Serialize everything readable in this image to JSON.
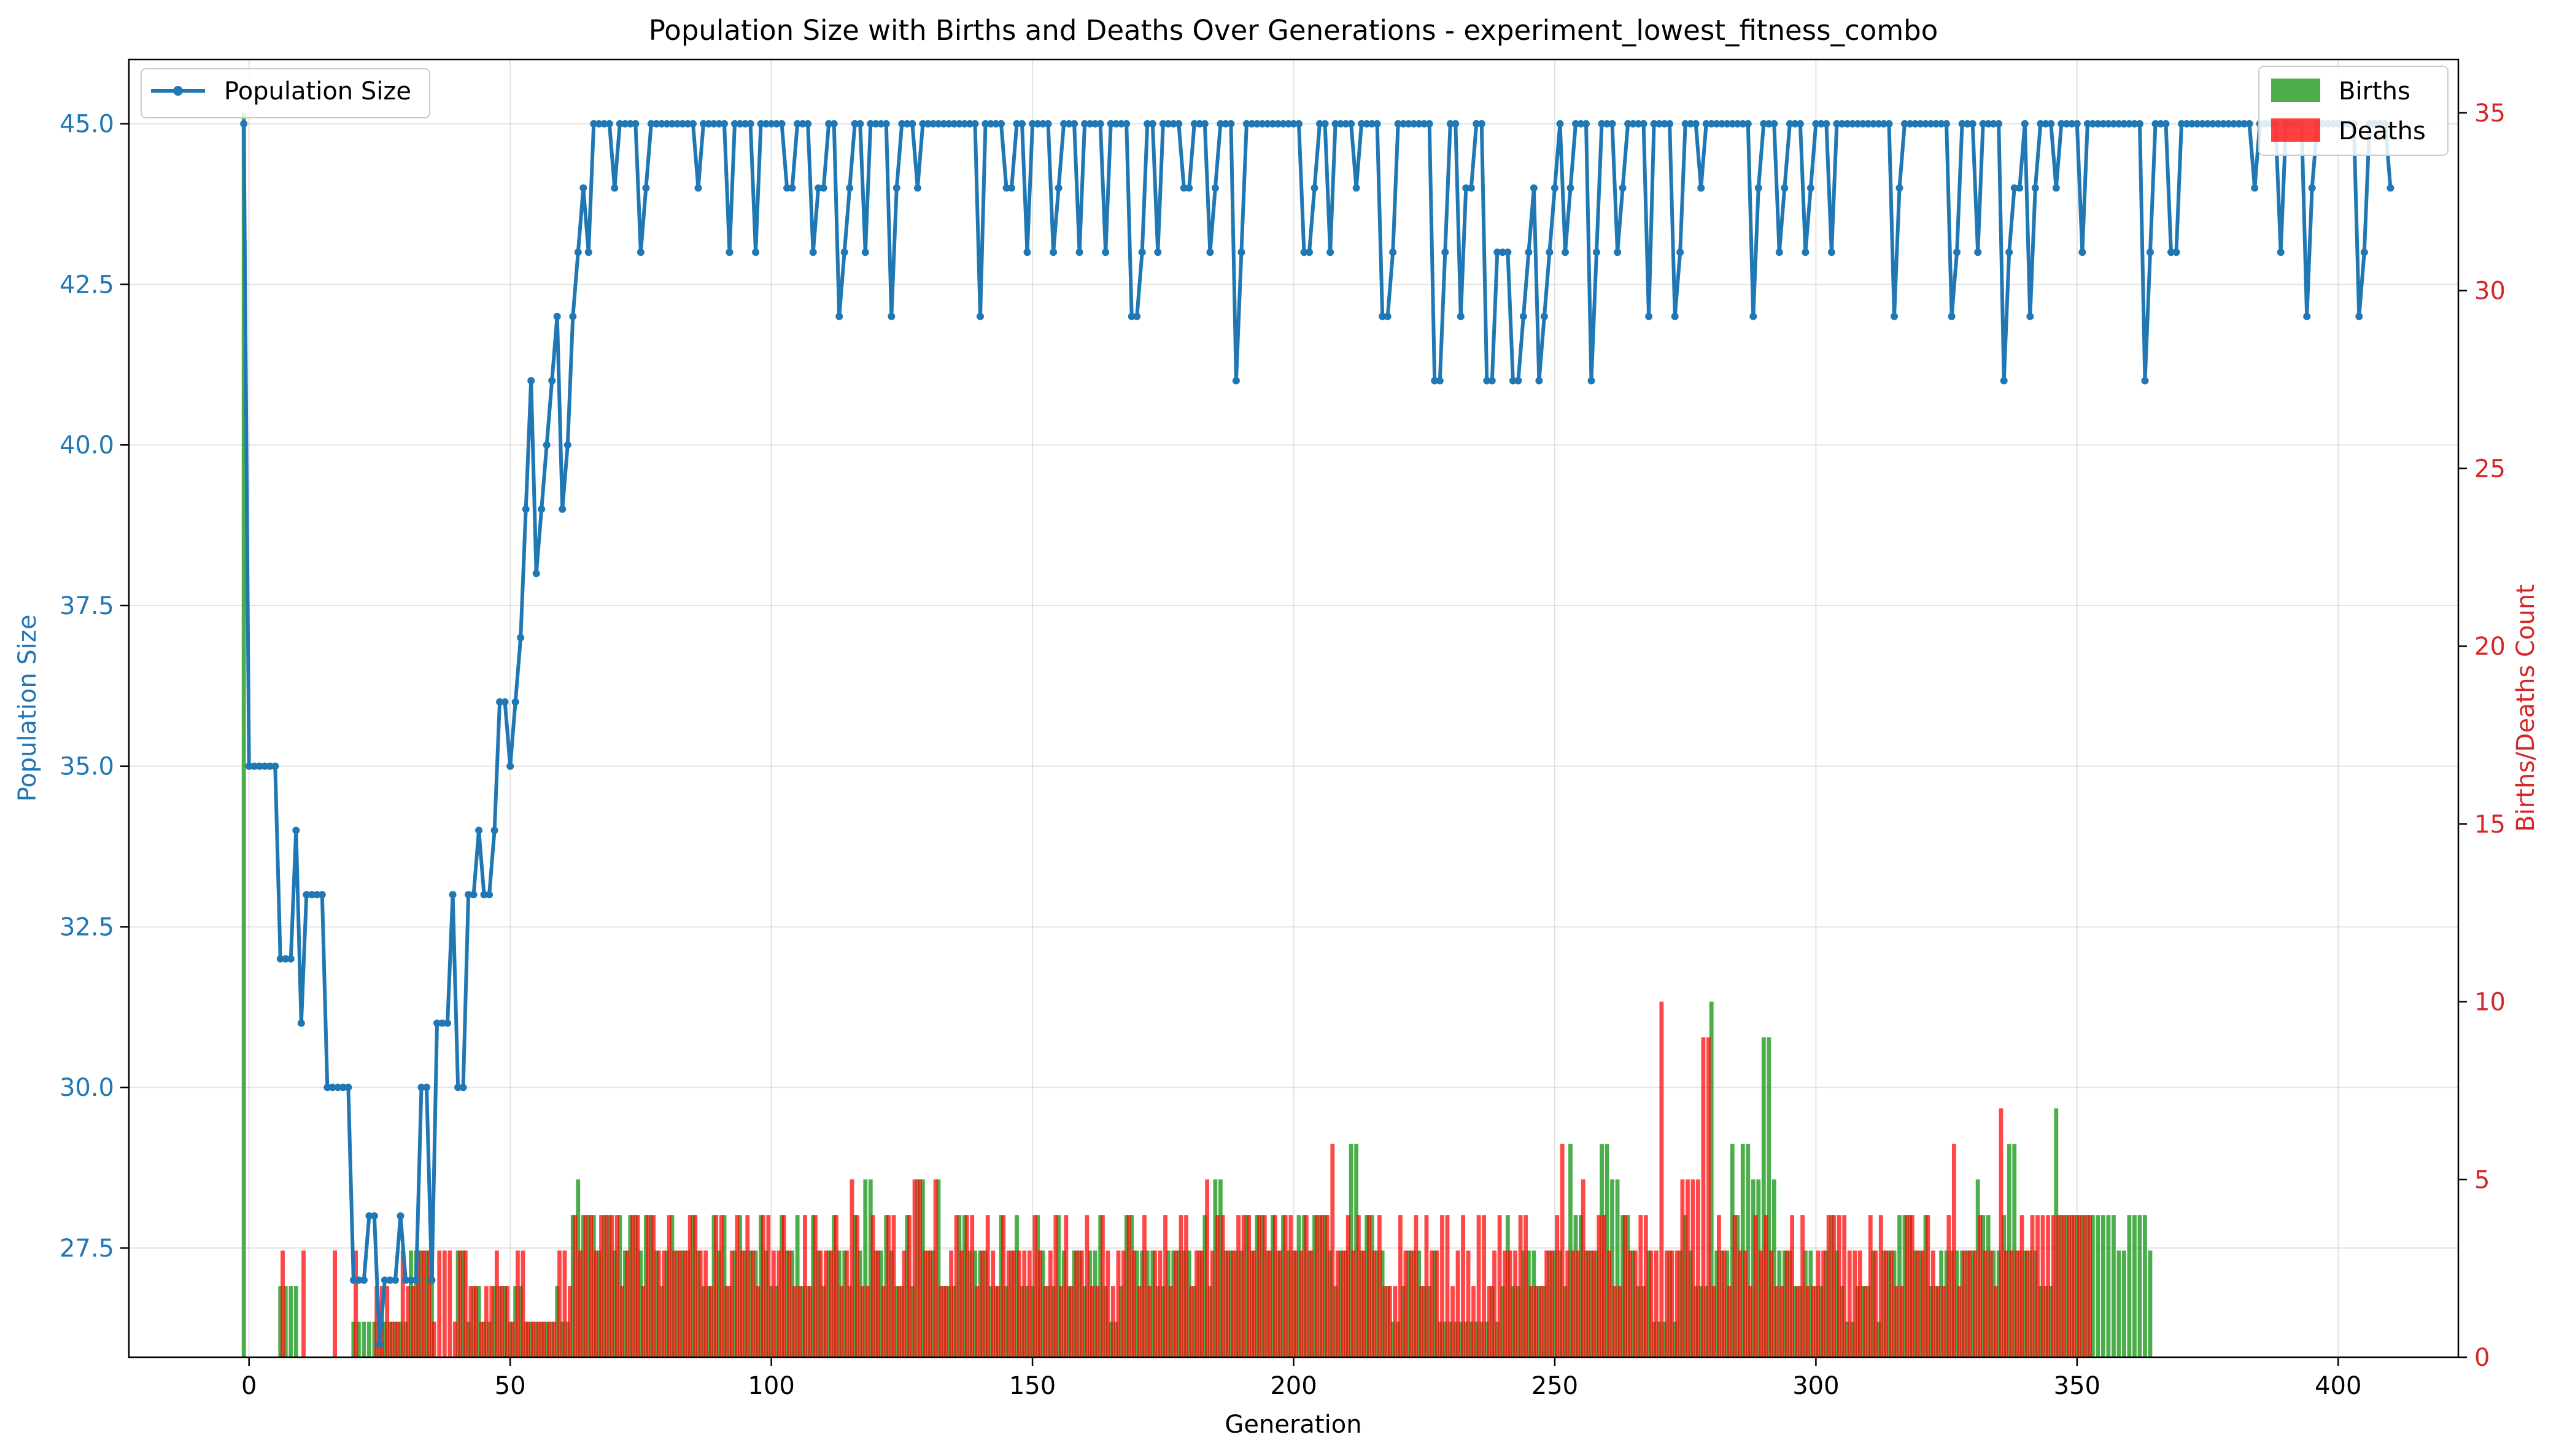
{
  "chart_data": {
    "type": "line",
    "title": "Population Size with Births and Deaths Over Generations - experiment_lowest_fitness_combo",
    "xlabel": "Generation",
    "ylabel_left": "Population Size",
    "ylabel_right": "Births/Deaths Count",
    "xlim": [
      -23,
      423
    ],
    "ylim_left": [
      25.8,
      46.0
    ],
    "ylim_right": [
      0,
      36.5
    ],
    "xticks": [
      0,
      50,
      100,
      150,
      200,
      250,
      300,
      350,
      400
    ],
    "xtick_labels": [
      "0",
      "50",
      "100",
      "150",
      "200",
      "250",
      "300",
      "350",
      "400"
    ],
    "yticks_left": [
      27.5,
      30.0,
      32.5,
      35.0,
      37.5,
      40.0,
      42.5,
      45.0
    ],
    "ytick_labels_left": [
      "27.5",
      "30.0",
      "32.5",
      "35.0",
      "37.5",
      "40.0",
      "42.5",
      "45.0"
    ],
    "yticks_right": [
      0,
      5,
      10,
      15,
      20,
      25,
      30,
      35
    ],
    "ytick_labels_right": [
      "0",
      "5",
      "10",
      "15",
      "20",
      "25",
      "30",
      "35"
    ],
    "grid": true,
    "legend_left": {
      "placement": "top-left",
      "entries": [
        "Population Size"
      ]
    },
    "legend_right": {
      "placement": "top-right",
      "entries": [
        "Births",
        "Deaths"
      ]
    },
    "colors": {
      "population": "#1f77b4",
      "births": "#2ca02c",
      "deaths": "#ff0000",
      "right_axis": "#d62728"
    },
    "population": {
      "name": "Population Size",
      "x_start": -1,
      "values": [
        45,
        35,
        35,
        35,
        35,
        35,
        35,
        32,
        32,
        32,
        34,
        31,
        33,
        33,
        33,
        33,
        30,
        30,
        30,
        30,
        30,
        27,
        27,
        27,
        28,
        28,
        26,
        27,
        27,
        27,
        28,
        27,
        27,
        27,
        30,
        30,
        27,
        31,
        31,
        31,
        33,
        30,
        30,
        33,
        33,
        34,
        33,
        33,
        34,
        36,
        36,
        35,
        36,
        37,
        39,
        41,
        38,
        39,
        40,
        41,
        42,
        39,
        40,
        42,
        43,
        44,
        43,
        45,
        45,
        45,
        45,
        44,
        45,
        45,
        45,
        45,
        43,
        44,
        45,
        45,
        45,
        45,
        45,
        45,
        45,
        45,
        45,
        44,
        45,
        45,
        45,
        45,
        45,
        43,
        45,
        45,
        45,
        45,
        43,
        45,
        45,
        45,
        45,
        45,
        44,
        44,
        45,
        45,
        45,
        43,
        44,
        44,
        45,
        45,
        42,
        43,
        44,
        45,
        45,
        43,
        45,
        45,
        45,
        45,
        42,
        44,
        45,
        45,
        45,
        44,
        45,
        45,
        45,
        45,
        45,
        45,
        45,
        45,
        45,
        45,
        45,
        42,
        45,
        45,
        45,
        45,
        44,
        44,
        45,
        45,
        43,
        45,
        45,
        45,
        45,
        43,
        44,
        45,
        45,
        45,
        43,
        45,
        45,
        45,
        45,
        43,
        45,
        45,
        45,
        45,
        42,
        42,
        43,
        45,
        45,
        43,
        45,
        45,
        45,
        45,
        44,
        44,
        45,
        45,
        45,
        43,
        44,
        45,
        45,
        45,
        41,
        43,
        45,
        45,
        45,
        45,
        45,
        45,
        45,
        45,
        45,
        45,
        45,
        43,
        43,
        44,
        45,
        45,
        43,
        45,
        45,
        45,
        45,
        44,
        45,
        45,
        45,
        45,
        42,
        42,
        43,
        45,
        45,
        45,
        45,
        45,
        45,
        45,
        41,
        41,
        43,
        45,
        45,
        42,
        44,
        44,
        45,
        45,
        41,
        41,
        43,
        43,
        43,
        41,
        41,
        42,
        43,
        44,
        41,
        42,
        43,
        44,
        45,
        43,
        44,
        45,
        45,
        45,
        41,
        43,
        45,
        45,
        45,
        43,
        44,
        45,
        45,
        45,
        45,
        42,
        45,
        45,
        45,
        45,
        42,
        43,
        45,
        45,
        45,
        44,
        45,
        45,
        45,
        45,
        45,
        45,
        45,
        45,
        45,
        42,
        44,
        45,
        45,
        45,
        43,
        44,
        45,
        45,
        45,
        43,
        44,
        45,
        45,
        45,
        43,
        45,
        45,
        45,
        45,
        45,
        45,
        45,
        45,
        45,
        45,
        45,
        42,
        44,
        45,
        45,
        45,
        45,
        45,
        45,
        45,
        45,
        45,
        42,
        43,
        45,
        45,
        45,
        43,
        45,
        45,
        45,
        45,
        41,
        43,
        44,
        44,
        45,
        42,
        44,
        45,
        45,
        45,
        44,
        45,
        45,
        45,
        45,
        43,
        45,
        45,
        45,
        45,
        45,
        45,
        45,
        45,
        45,
        45,
        45,
        41,
        43,
        45,
        45,
        45,
        43,
        43,
        45,
        45,
        45,
        45,
        45,
        45,
        45,
        45,
        45,
        45,
        45,
        45,
        45,
        45,
        44,
        45,
        45,
        45,
        45,
        43,
        45,
        45,
        45,
        45,
        42,
        44,
        45,
        45,
        45,
        45,
        45,
        45,
        45,
        45,
        42,
        43,
        45,
        45,
        45,
        45,
        44
      ]
    },
    "births": {
      "name": "Births",
      "x_start": -1,
      "values": [
        35,
        0,
        0,
        0,
        0,
        0,
        0,
        2,
        2,
        2,
        2,
        0,
        0,
        0,
        0,
        0,
        0,
        0,
        0,
        0,
        0,
        1,
        1,
        1,
        1,
        1,
        1,
        1,
        1,
        1,
        1,
        1,
        3,
        3,
        3,
        3,
        4,
        0,
        0,
        0,
        0,
        3,
        3,
        1,
        2,
        2,
        1,
        1,
        2,
        2,
        2,
        1,
        2,
        2,
        1,
        1,
        1,
        1,
        1,
        1,
        2,
        1,
        1,
        4,
        5,
        4,
        4,
        4,
        3,
        4,
        4,
        3,
        4,
        3,
        4,
        4,
        3,
        4,
        4,
        3,
        2,
        3,
        4,
        3,
        3,
        3,
        4,
        3,
        2,
        2,
        4,
        3,
        4,
        2,
        3,
        4,
        3,
        3,
        3,
        4,
        3,
        2,
        2,
        4,
        3,
        3,
        4,
        2,
        2,
        4,
        3,
        2,
        3,
        4,
        3,
        3,
        2,
        4,
        3,
        5,
        5,
        3,
        3,
        4,
        3,
        2,
        2,
        4,
        2,
        5,
        5,
        3,
        3,
        5,
        2,
        2,
        2,
        4,
        4,
        3,
        3,
        3,
        3,
        2,
        2,
        4,
        2,
        3,
        4,
        2,
        2,
        2,
        4,
        3,
        2,
        2,
        4,
        3,
        2,
        3,
        3,
        2,
        3,
        3,
        4,
        2,
        1,
        1,
        2,
        4,
        4,
        3,
        3,
        3,
        3,
        2,
        2,
        3,
        3,
        3,
        3,
        3,
        2,
        3,
        4,
        2,
        5,
        5,
        3,
        3,
        3,
        3,
        4,
        3,
        4,
        4,
        3,
        4,
        3,
        4,
        3,
        3,
        4,
        4,
        3,
        4,
        4,
        4,
        3,
        2,
        3,
        3,
        6,
        6,
        3,
        4,
        4,
        3,
        3,
        2,
        1,
        1,
        2,
        3,
        3,
        3,
        2,
        2,
        3,
        1,
        1,
        1,
        1,
        1,
        1,
        1,
        1,
        1,
        1,
        2,
        1,
        2,
        4,
        2,
        2,
        3,
        3,
        3,
        2,
        2,
        3,
        3,
        3,
        2,
        6,
        4,
        4,
        3,
        3,
        3,
        6,
        6,
        5,
        5,
        4,
        4,
        3,
        2,
        2,
        3,
        1,
        1,
        1,
        3,
        1,
        3,
        4,
        3,
        2,
        2,
        2,
        10,
        3,
        3,
        3,
        6,
        4,
        6,
        6,
        5,
        5,
        9,
        9,
        5,
        3,
        3,
        3,
        2,
        2,
        3,
        3,
        2,
        2,
        3,
        4,
        3,
        2,
        1,
        1,
        2,
        2,
        2,
        3,
        1,
        3,
        3,
        3,
        4,
        4,
        4,
        3,
        3,
        4,
        2,
        2,
        3,
        3,
        3,
        3,
        3,
        3,
        3,
        5,
        4,
        4,
        3,
        3,
        4,
        6,
        6,
        3,
        3,
        3,
        3,
        2,
        2,
        2,
        7,
        4,
        4,
        4,
        4,
        4,
        4,
        4,
        4,
        4,
        4,
        4,
        3,
        3,
        4,
        4,
        4,
        4,
        3
      ]
    },
    "deaths": {
      "name": "Deaths",
      "x_start": -1,
      "values": [
        0,
        0,
        0,
        0,
        0,
        0,
        0,
        3,
        0,
        0,
        0,
        3,
        0,
        0,
        0,
        0,
        0,
        3,
        0,
        0,
        0,
        3,
        0,
        0,
        0,
        2,
        2,
        2,
        1,
        1,
        3,
        2,
        2,
        3,
        3,
        3,
        1,
        3,
        3,
        3,
        1,
        3,
        3,
        2,
        2,
        1,
        2,
        2,
        3,
        2,
        2,
        1,
        3,
        3,
        1,
        1,
        1,
        1,
        1,
        1,
        3,
        3,
        2,
        4,
        3,
        4,
        4,
        3,
        4,
        4,
        4,
        4,
        2,
        3,
        4,
        4,
        2,
        4,
        4,
        3,
        3,
        4,
        3,
        3,
        3,
        4,
        4,
        3,
        3,
        2,
        4,
        4,
        2,
        3,
        4,
        3,
        4,
        3,
        2,
        4,
        4,
        3,
        3,
        4,
        3,
        2,
        2,
        4,
        2,
        4,
        3,
        3,
        3,
        4,
        2,
        3,
        5,
        4,
        2,
        2,
        4,
        3,
        2,
        4,
        4,
        2,
        3,
        4,
        5,
        5,
        3,
        3,
        5,
        2,
        2,
        3,
        4,
        3,
        4,
        4,
        2,
        3,
        4,
        3,
        2,
        4,
        3,
        3,
        3,
        3,
        3,
        4,
        3,
        2,
        3,
        4,
        2,
        4,
        2,
        3,
        3,
        4,
        2,
        2,
        4,
        3,
        2,
        3,
        3,
        4,
        3,
        2,
        4,
        2,
        3,
        3,
        4,
        2,
        3,
        4,
        4,
        2,
        3,
        3,
        5,
        3,
        4,
        4,
        3,
        3,
        4,
        4,
        4,
        3,
        4,
        4,
        3,
        4,
        3,
        4,
        4,
        3,
        3,
        4,
        3,
        4,
        4,
        4,
        6,
        3,
        3,
        4,
        3,
        4,
        3,
        4,
        3,
        4,
        2,
        2,
        2,
        4,
        3,
        3,
        4,
        2,
        4,
        3,
        3,
        4,
        4,
        2,
        3,
        4,
        3,
        2,
        4,
        4,
        2,
        3,
        4,
        3,
        3,
        3,
        4,
        4,
        2,
        2,
        2,
        3,
        3,
        4,
        6,
        3,
        3,
        3,
        5,
        3,
        3,
        4,
        4,
        3,
        2,
        2,
        4,
        3,
        3,
        4,
        4,
        3,
        3,
        10,
        3,
        3,
        3,
        5,
        5,
        5,
        5,
        9,
        9,
        2,
        4,
        3,
        2,
        4,
        3,
        3,
        2,
        4,
        3,
        4,
        3,
        2,
        2,
        3,
        4,
        2,
        4,
        2,
        2,
        3,
        3,
        4,
        4,
        4,
        4,
        3,
        3,
        3,
        2,
        4,
        3,
        4,
        3,
        3,
        2,
        2,
        4,
        4,
        3,
        3,
        4,
        3,
        2,
        2,
        4,
        6,
        2,
        3,
        3,
        3,
        4,
        3,
        3,
        2,
        7,
        3,
        3,
        3,
        4,
        3,
        4,
        4,
        4,
        4,
        4,
        4,
        4,
        4,
        4,
        4,
        4,
        4
      ]
    }
  }
}
